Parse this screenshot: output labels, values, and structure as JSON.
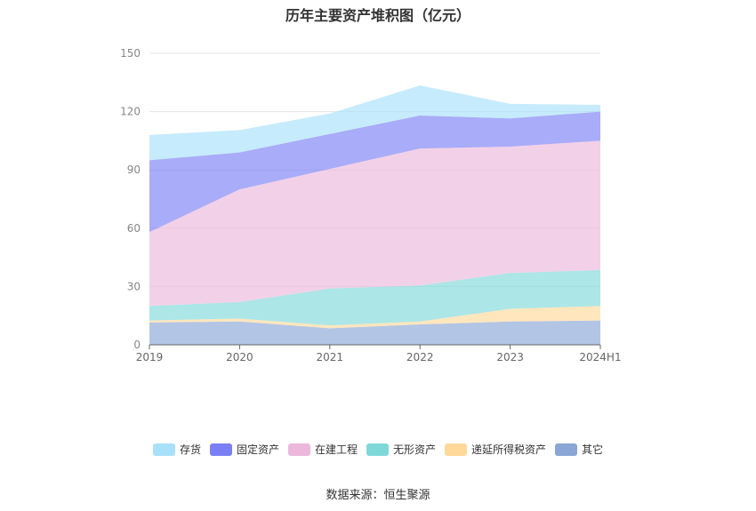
{
  "chart_data": {
    "type": "area",
    "stacked": true,
    "title": "历年主要资产堆积图（亿元）",
    "categories": [
      "2019",
      "2020",
      "2021",
      "2022",
      "2023",
      "2024H1"
    ],
    "ylim": [
      0,
      150
    ],
    "yticks": [
      "0",
      "30",
      "60",
      "90",
      "120",
      "150"
    ],
    "grid": true,
    "legend_position": "bottom",
    "series": [
      {
        "name": "其它",
        "color": "#8aa6d6",
        "values": [
          11.5,
          12,
          8.5,
          10.5,
          12,
          12.5
        ]
      },
      {
        "name": "递延所得税资产",
        "color": "#ffd89a",
        "values": [
          1,
          1.5,
          1.5,
          1.5,
          6.5,
          7.5
        ]
      },
      {
        "name": "无形资产",
        "color": "#7fd8d8",
        "values": [
          7.5,
          8.5,
          19,
          18.5,
          18.5,
          18.5
        ]
      },
      {
        "name": "在建工程",
        "color": "#ebb8db",
        "values": [
          38,
          58,
          61.5,
          70.5,
          65,
          66.5
        ]
      },
      {
        "name": "固定资产",
        "color": "#7b7ff5",
        "values": [
          37,
          19,
          18,
          17,
          14.5,
          15
        ]
      },
      {
        "name": "存货",
        "color": "#a8e0fa",
        "values": [
          13,
          11.5,
          10.5,
          15.5,
          7.5,
          3.5
        ]
      }
    ],
    "legend_order": [
      "存货",
      "固定资产",
      "在建工程",
      "无形资产",
      "递延所得税资产",
      "其它"
    ]
  },
  "source_label": "数据来源：恒生聚源"
}
